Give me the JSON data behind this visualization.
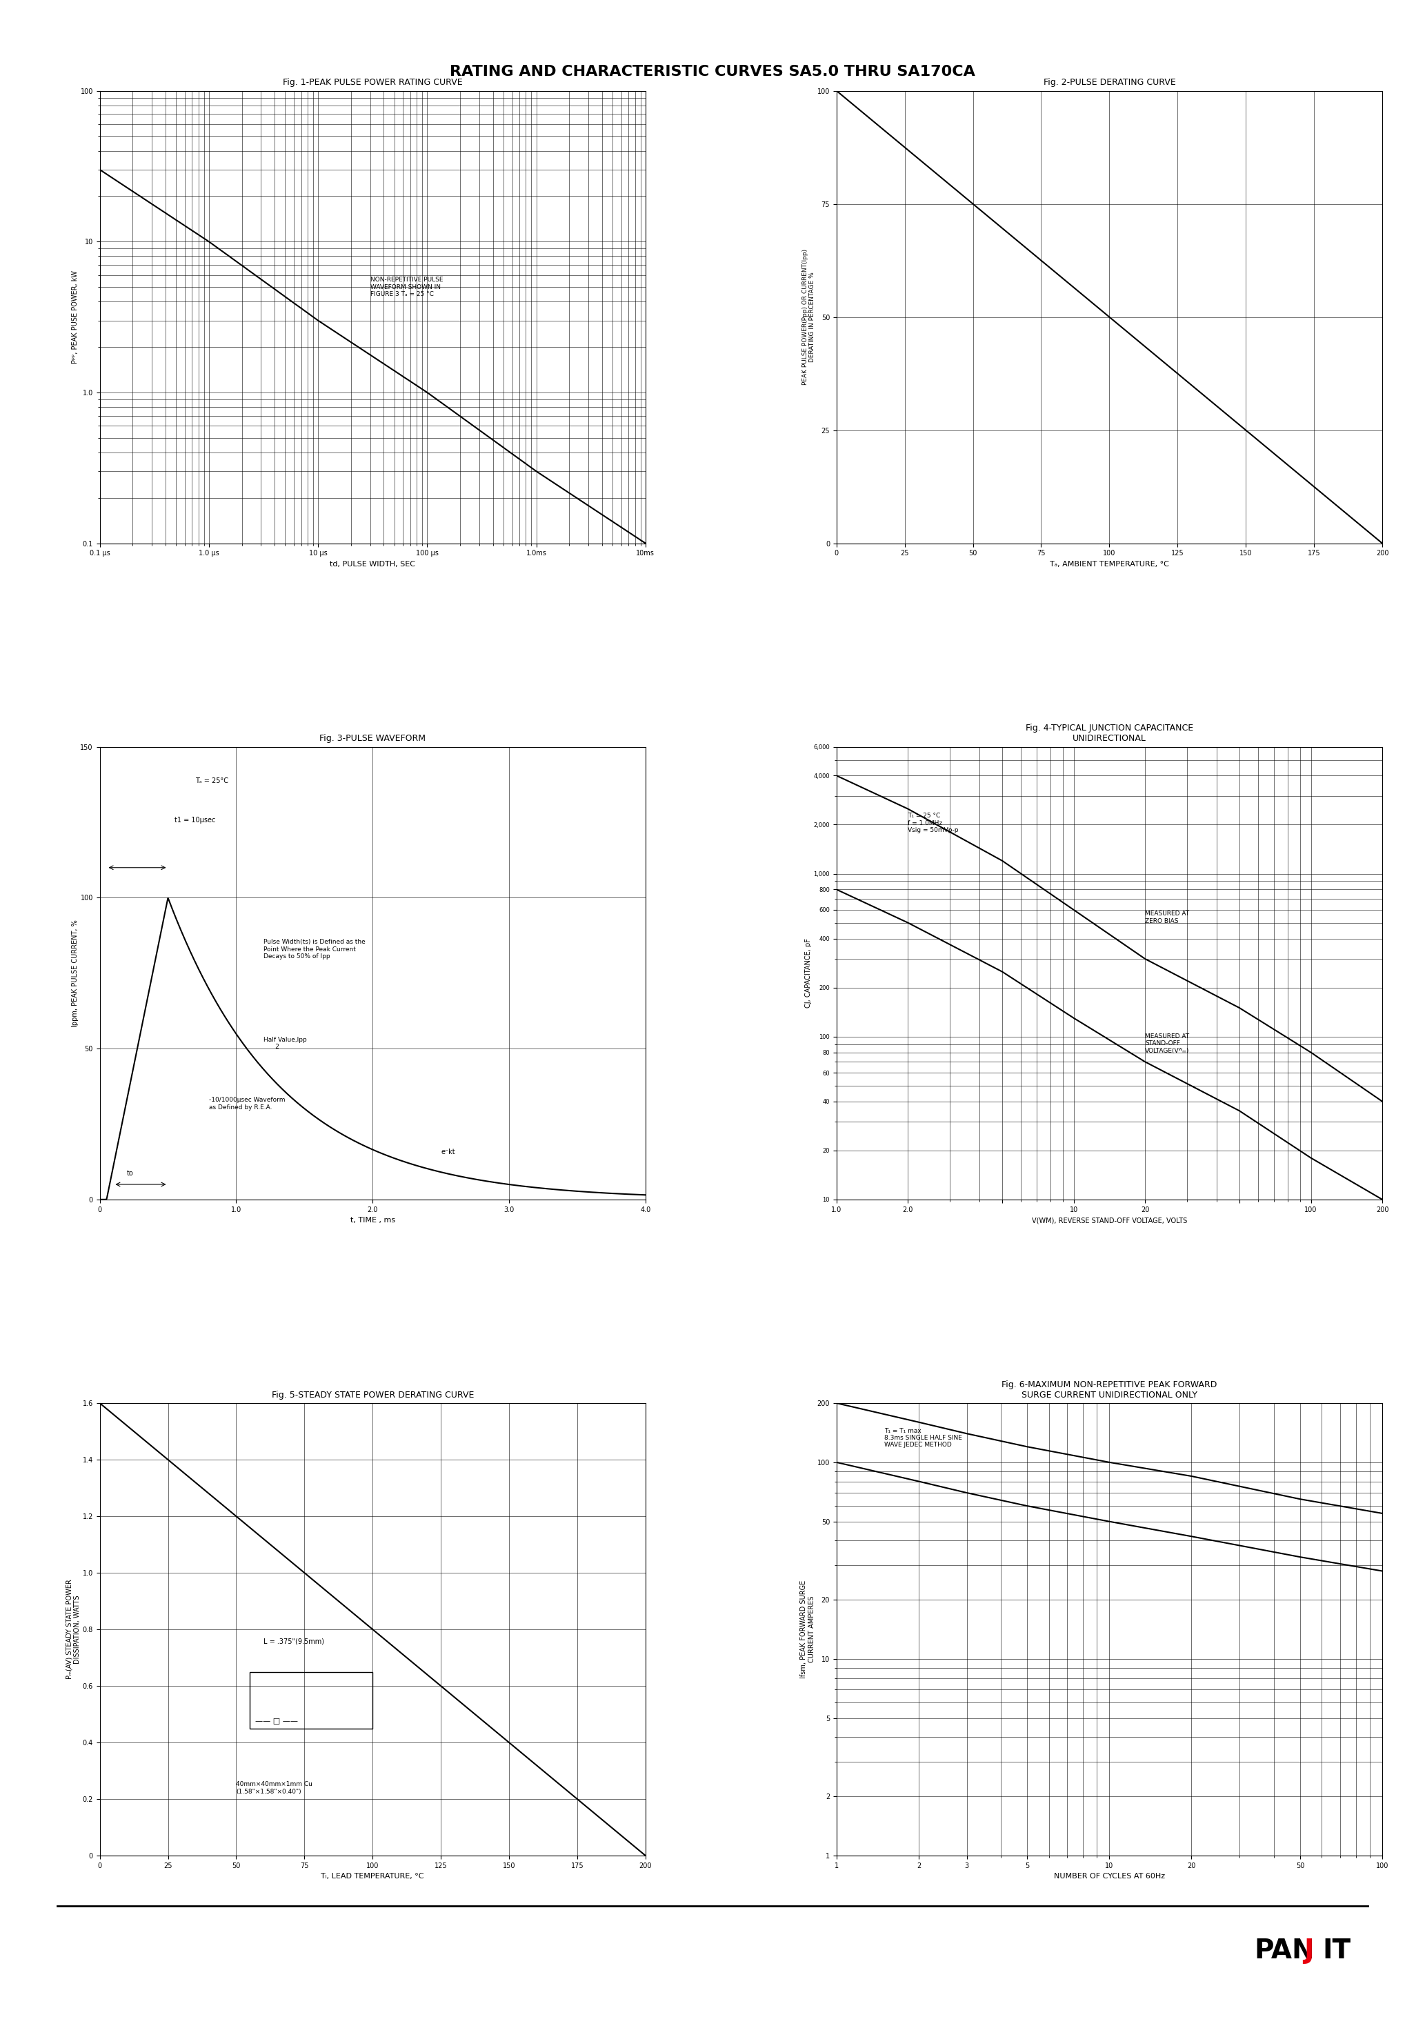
{
  "title": "RATING AND CHARACTERISTIC CURVES SA5.0 THRU SA170CA",
  "page_bg": "#ffffff",
  "fig1_title": "Fig. 1-PEAK PULSE POWER RATING CURVE",
  "fig2_title": "Fig. 2-PULSE DERATING CURVE",
  "fig3_title": "Fig. 3-PULSE WAVEFORM",
  "fig4_title": "Fig. 4-TYPICAL JUNCTION CAPACITANCE\nUNIDIRECTIONAL",
  "fig5_title": "Fig. 5-STEADY STATE POWER DERATING CURVE",
  "fig6_title": "Fig. 6-MAXIMUM NON-REPETITIVE PEAK FORWARD\nSURGE CURRENT UNIDIRECTIONAL ONLY",
  "fig1_xlabel": "td, PULSE WIDTH, SEC",
  "fig1_ylabel": "P’’’’’’, PEAK PUSE POWER, kW",
  "fig1_annotation": "NON-REPETITIVE PULSE\nWAVEFORM SHOWN IN\nFIGURE 3 Tₐ = 25 °C",
  "fig2_xlabel": "Tₐ, AMBIENT TEMPERATURE, °C",
  "fig2_ylabel": "PEAK PULSE POWER(Ppp) OR CURRENT(Ipp)\nDERATING IN PERCENTAGE %",
  "fig3_xlabel": "t, TIME , ms",
  "fig3_ylabel": "Ippm, PEAK PULSE CURRENT, %",
  "fig4_xlabel": "V(WM), REVERSE STAND-OFF VOLTAGE, VOLTS",
  "fig4_ylabel": "CJ, CAPACITANCE, pF",
  "fig5_xlabel": "Tₗ, LEAD TEMPERATURE, °C",
  "fig5_ylabel": "Pₙ(AV) STEADY STATE POWER\nDISSIPATION, WATTS",
  "fig6_xlabel": "NUMBER OF CYCLES AT 60Hz",
  "fig6_ylabel": "Ifsm, PEAK FORWARD SURGE\nCURRENT AMPERES",
  "logo_text": "PANJIT",
  "line_color": "#000000"
}
